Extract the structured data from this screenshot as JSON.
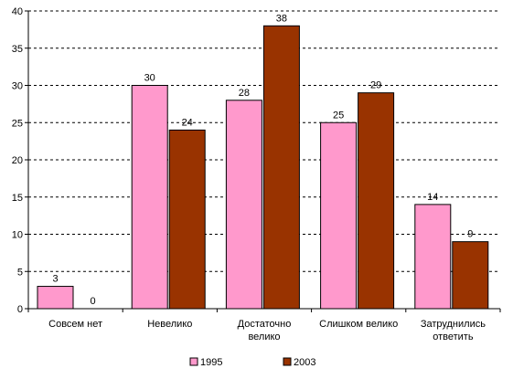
{
  "chart_data": {
    "type": "bar",
    "categories": [
      [
        "Совсем нет"
      ],
      [
        "Невелико"
      ],
      [
        "Достаточно",
        "велико"
      ],
      [
        "Слишком велико"
      ],
      [
        "Затруднились",
        "ответить"
      ]
    ],
    "series": [
      {
        "name": "1995",
        "values": [
          3,
          30,
          28,
          25,
          14
        ],
        "color": "#ff99cc"
      },
      {
        "name": "2003",
        "values": [
          0,
          24,
          38,
          29,
          9
        ],
        "color": "#993300"
      }
    ],
    "ylim": [
      0,
      40
    ],
    "yticks": [
      0,
      5,
      10,
      15,
      20,
      25,
      30,
      35,
      40
    ],
    "grid": "dashed-horizontal",
    "legend_position": "bottom"
  }
}
